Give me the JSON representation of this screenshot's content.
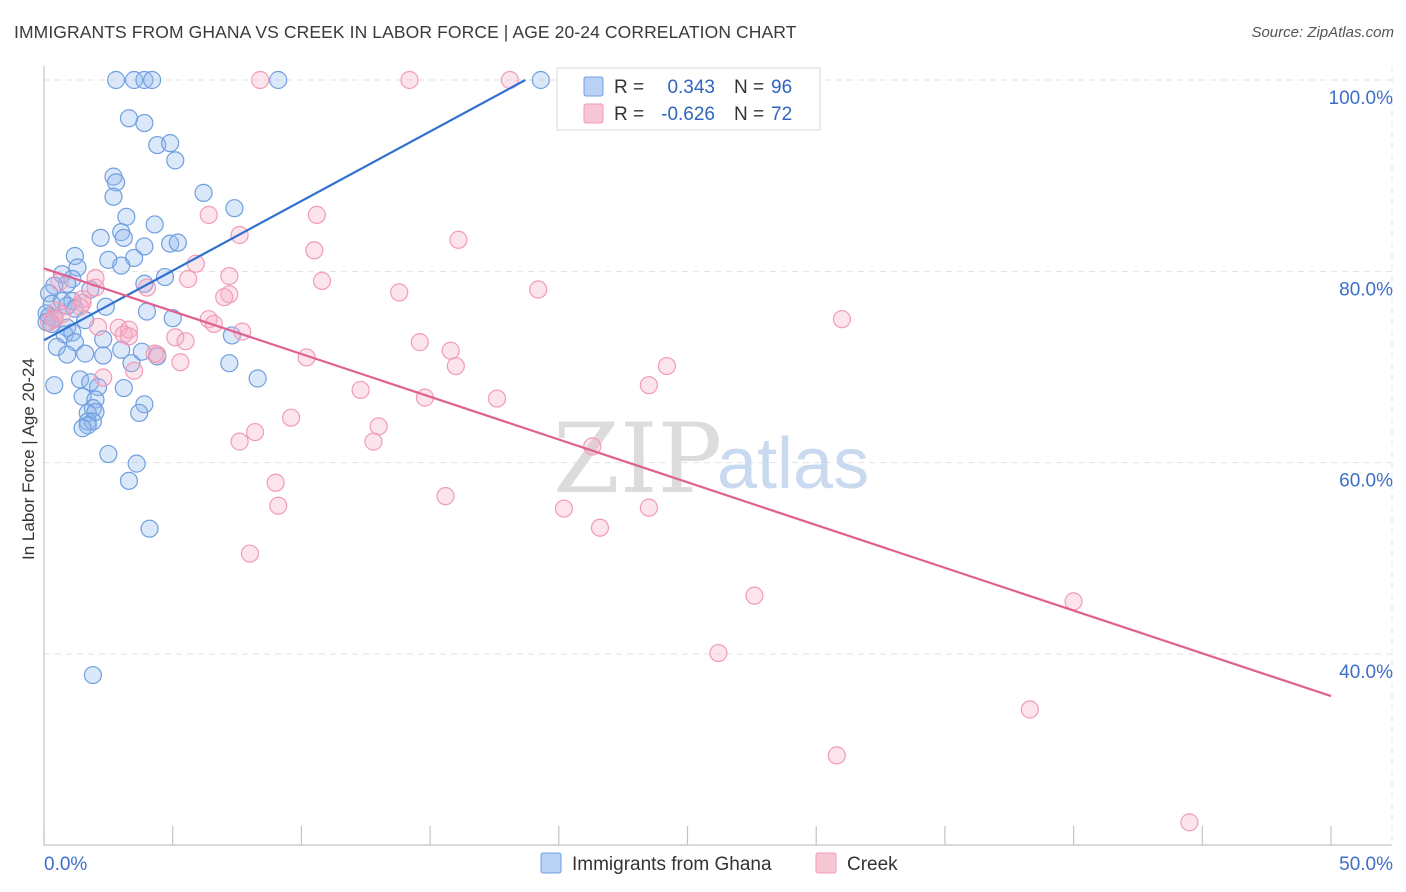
{
  "title": "IMMIGRANTS FROM GHANA VS CREEK IN LABOR FORCE | AGE 20-24 CORRELATION CHART",
  "source": "Source: ZipAtlas.com",
  "watermark": {
    "zip": "ZIP",
    "atlas": "atlas"
  },
  "chart_data": {
    "type": "scatter",
    "title": "IMMIGRANTS FROM GHANA VS CREEK IN LABOR FORCE | AGE 20-24 CORRELATION CHART",
    "xlabel": "",
    "ylabel": "In Labor Force | Age 20-24",
    "xlim": [
      0,
      50
    ],
    "ylim": [
      20,
      102
    ],
    "x_tick_labels": {
      "left": "0.0%",
      "right": "50.0%"
    },
    "y_ticks": [
      {
        "value": 100,
        "label": "100.0%"
      },
      {
        "value": 80,
        "label": "80.0%"
      },
      {
        "value": 60,
        "label": "60.0%"
      },
      {
        "value": 40,
        "label": "40.0%"
      }
    ],
    "grid": true,
    "legend": {
      "position": "top-center",
      "entries": [
        {
          "r_label": "R =",
          "r_value": "0.343",
          "n_label": "N =",
          "n_value": "96"
        },
        {
          "r_label": "R =",
          "r_value": "-0.626",
          "n_label": "N =",
          "n_value": "72"
        }
      ]
    },
    "series": [
      {
        "name": "Immigrants from Ghana",
        "color": "#6f9fe0",
        "line_color": "#3071d0",
        "trendline": {
          "x": [
            0,
            18.7
          ],
          "y": [
            72.8,
            100.0
          ]
        },
        "points": [
          [
            2.8,
            100
          ],
          [
            3.5,
            100
          ],
          [
            3.9,
            100
          ],
          [
            4.2,
            100
          ],
          [
            9.1,
            100
          ],
          [
            19.3,
            100
          ],
          [
            3.3,
            96
          ],
          [
            3.9,
            95.5
          ],
          [
            4.4,
            93.2
          ],
          [
            4.9,
            93.4
          ],
          [
            5.1,
            91.6
          ],
          [
            2.7,
            89.9
          ],
          [
            2.8,
            89.3
          ],
          [
            2.7,
            87.8
          ],
          [
            6.2,
            88.2
          ],
          [
            7.4,
            86.6
          ],
          [
            3.2,
            85.7
          ],
          [
            4.3,
            84.9
          ],
          [
            3.0,
            84.1
          ],
          [
            2.2,
            83.5
          ],
          [
            3.1,
            83.5
          ],
          [
            3.9,
            82.6
          ],
          [
            4.9,
            82.9
          ],
          [
            5.2,
            83.0
          ],
          [
            1.2,
            81.6
          ],
          [
            2.5,
            81.2
          ],
          [
            3.5,
            81.4
          ],
          [
            3.0,
            80.6
          ],
          [
            1.3,
            80.4
          ],
          [
            0.7,
            79.7
          ],
          [
            1.1,
            79.2
          ],
          [
            0.9,
            78.7
          ],
          [
            0.4,
            78.5
          ],
          [
            1.8,
            78.1
          ],
          [
            3.9,
            78.7
          ],
          [
            4.7,
            79.4
          ],
          [
            0.2,
            77.7
          ],
          [
            0.3,
            76.6
          ],
          [
            0.7,
            76.9
          ],
          [
            1.1,
            76.9
          ],
          [
            0.9,
            76.4
          ],
          [
            1.2,
            76.1
          ],
          [
            2.4,
            76.3
          ],
          [
            4.0,
            75.8
          ],
          [
            0.1,
            75.6
          ],
          [
            0.2,
            75.3
          ],
          [
            0.4,
            75.1
          ],
          [
            0.1,
            74.7
          ],
          [
            0.3,
            74.5
          ],
          [
            0.9,
            74.1
          ],
          [
            1.6,
            74.9
          ],
          [
            5.0,
            75.1
          ],
          [
            0.8,
            73.4
          ],
          [
            1.1,
            73.6
          ],
          [
            1.2,
            72.6
          ],
          [
            0.5,
            72.1
          ],
          [
            2.3,
            72.9
          ],
          [
            3.0,
            71.8
          ],
          [
            7.3,
            73.3
          ],
          [
            0.9,
            71.3
          ],
          [
            1.6,
            71.4
          ],
          [
            2.3,
            71.2
          ],
          [
            3.8,
            71.6
          ],
          [
            4.4,
            71.1
          ],
          [
            3.4,
            70.4
          ],
          [
            7.2,
            70.4
          ],
          [
            8.3,
            68.8
          ],
          [
            0.4,
            68.1
          ],
          [
            1.4,
            68.7
          ],
          [
            1.8,
            68.4
          ],
          [
            2.1,
            67.9
          ],
          [
            3.1,
            67.8
          ],
          [
            1.5,
            66.9
          ],
          [
            2.0,
            66.6
          ],
          [
            1.9,
            65.7
          ],
          [
            1.7,
            65.2
          ],
          [
            2.0,
            65.3
          ],
          [
            3.9,
            66.1
          ],
          [
            3.7,
            65.2
          ],
          [
            1.7,
            64.3
          ],
          [
            1.9,
            64.3
          ],
          [
            1.7,
            63.9
          ],
          [
            1.5,
            63.6
          ],
          [
            2.5,
            60.9
          ],
          [
            3.6,
            59.9
          ],
          [
            3.3,
            58.1
          ],
          [
            4.1,
            53.1
          ],
          [
            1.9,
            37.8
          ]
        ]
      },
      {
        "name": "Creek",
        "color": "#f29bb7",
        "line_color": "#e0608f",
        "trendline": {
          "x": [
            0,
            50
          ],
          "y": [
            80.3,
            35.6
          ]
        },
        "points": [
          [
            8.4,
            100
          ],
          [
            14.2,
            100
          ],
          [
            18.1,
            100
          ],
          [
            6.4,
            85.9
          ],
          [
            10.6,
            85.9
          ],
          [
            7.6,
            83.8
          ],
          [
            10.5,
            82.2
          ],
          [
            16.1,
            83.3
          ],
          [
            5.9,
            80.8
          ],
          [
            2.0,
            79.3
          ],
          [
            7.2,
            79.5
          ],
          [
            5.6,
            79.2
          ],
          [
            10.8,
            79.0
          ],
          [
            0.6,
            78.9
          ],
          [
            2.0,
            78.3
          ],
          [
            4.0,
            78.3
          ],
          [
            13.8,
            77.8
          ],
          [
            19.2,
            78.1
          ],
          [
            1.5,
            77.1
          ],
          [
            1.5,
            76.7
          ],
          [
            7.2,
            77.6
          ],
          [
            7.0,
            77.3
          ],
          [
            1.4,
            76.3
          ],
          [
            0.5,
            75.9
          ],
          [
            0.7,
            75.5
          ],
          [
            6.4,
            75.0
          ],
          [
            0.4,
            75.0
          ],
          [
            0.2,
            74.7
          ],
          [
            6.6,
            74.5
          ],
          [
            2.1,
            74.2
          ],
          [
            2.9,
            74.1
          ],
          [
            3.3,
            73.9
          ],
          [
            3.1,
            73.4
          ],
          [
            7.7,
            73.7
          ],
          [
            5.1,
            73.1
          ],
          [
            3.3,
            73.2
          ],
          [
            14.6,
            72.6
          ],
          [
            5.5,
            72.7
          ],
          [
            15.8,
            71.7
          ],
          [
            4.3,
            71.4
          ],
          [
            4.4,
            71.3
          ],
          [
            10.2,
            71.0
          ],
          [
            5.3,
            70.5
          ],
          [
            16.0,
            70.1
          ],
          [
            24.2,
            70.1
          ],
          [
            3.5,
            69.6
          ],
          [
            2.3,
            68.9
          ],
          [
            23.5,
            68.1
          ],
          [
            12.3,
            67.6
          ],
          [
            14.8,
            66.8
          ],
          [
            17.6,
            66.7
          ],
          [
            9.6,
            64.7
          ],
          [
            13.0,
            63.8
          ],
          [
            8.2,
            63.2
          ],
          [
            7.6,
            62.2
          ],
          [
            12.8,
            62.2
          ],
          [
            21.3,
            61.7
          ],
          [
            9.0,
            57.9
          ],
          [
            15.6,
            56.5
          ],
          [
            9.1,
            55.5
          ],
          [
            20.2,
            55.2
          ],
          [
            23.5,
            55.3
          ],
          [
            21.6,
            53.2
          ],
          [
            8.0,
            50.5
          ],
          [
            27.6,
            46.1
          ],
          [
            40.0,
            45.5
          ],
          [
            26.2,
            40.1
          ],
          [
            38.3,
            34.2
          ],
          [
            30.8,
            29.4
          ],
          [
            44.5,
            22.4
          ],
          [
            31.0,
            75.0
          ]
        ]
      }
    ]
  },
  "bottom_legend": [
    {
      "label": "Immigrants from Ghana",
      "color": "#b9d2f3",
      "border": "#6f9fe0"
    },
    {
      "label": "Creek",
      "color": "#f8c7d6",
      "border": "#f29bb7"
    }
  ]
}
